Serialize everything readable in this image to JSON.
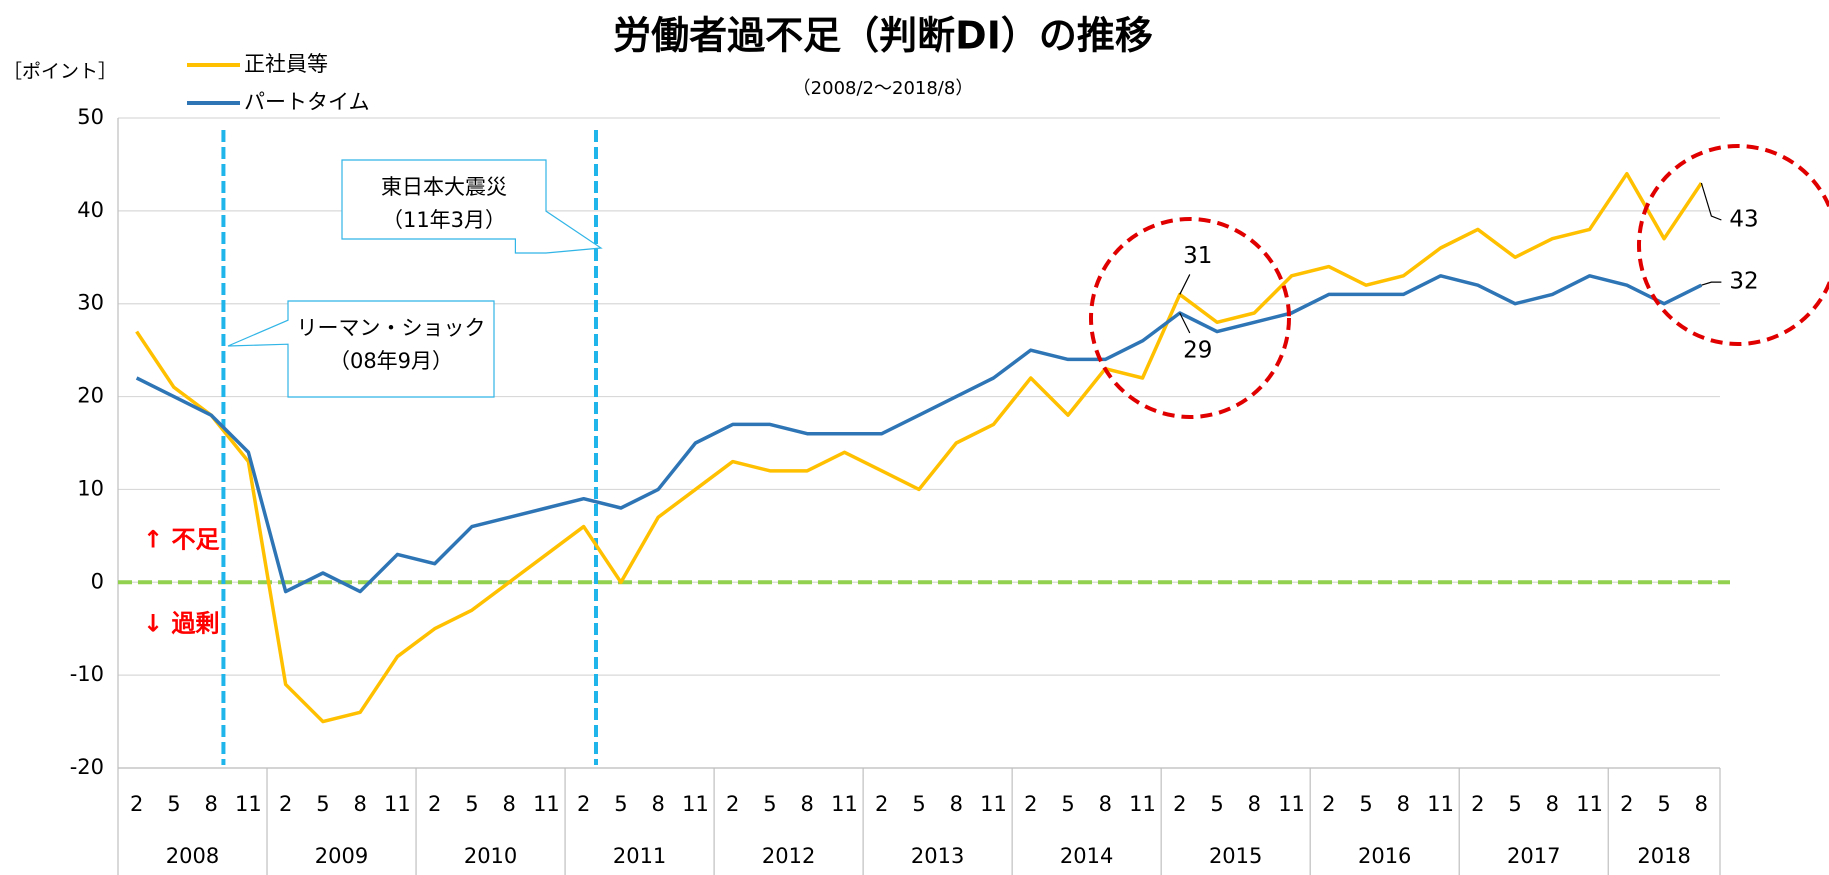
{
  "chart_data": {
    "type": "line",
    "title": "労働者過不足（判断DI）の推移",
    "subtitle": "（2008/2〜2018/8）",
    "y_label": "［ポイント］",
    "categories": [
      "2",
      "5",
      "8",
      "11",
      "2",
      "5",
      "8",
      "11",
      "2",
      "5",
      "8",
      "11",
      "2",
      "5",
      "8",
      "11",
      "2",
      "5",
      "8",
      "11",
      "2",
      "5",
      "8",
      "11",
      "2",
      "5",
      "8",
      "11",
      "2",
      "5",
      "8",
      "11",
      "2",
      "5",
      "8",
      "11",
      "2",
      "5",
      "8",
      "11",
      "2",
      "5",
      "8"
    ],
    "years": [
      "2008",
      "2009",
      "2010",
      "2011",
      "2012",
      "2013",
      "2014",
      "2015",
      "2016",
      "2017",
      "2018"
    ],
    "series": [
      {
        "name": "正社員等",
        "color": "#ffc000",
        "values": [
          27,
          21,
          18,
          13,
          -11,
          -15,
          -14,
          -8,
          -5,
          -3,
          0,
          3,
          6,
          0,
          7,
          10,
          13,
          12,
          12,
          14,
          12,
          10,
          15,
          17,
          22,
          18,
          23,
          22,
          31,
          28,
          29,
          33,
          34,
          32,
          33,
          36,
          38,
          35,
          37,
          38,
          44,
          37,
          43
        ],
        "value_labels": [
          null,
          null,
          null,
          null,
          null,
          null,
          null,
          null,
          null,
          null,
          null,
          null,
          null,
          null,
          null,
          null,
          null,
          null,
          null,
          null,
          null,
          null,
          null,
          null,
          null,
          null,
          null,
          null,
          "31",
          null,
          null,
          null,
          null,
          null,
          null,
          null,
          null,
          null,
          null,
          null,
          null,
          null,
          "43"
        ]
      },
      {
        "name": "パートタイム",
        "color": "#2e75b6",
        "values": [
          22,
          20,
          18,
          14,
          -1,
          1,
          -1,
          3,
          2,
          6,
          7,
          8,
          9,
          8,
          10,
          15,
          17,
          17,
          16,
          16,
          16,
          18,
          20,
          22,
          25,
          24,
          24,
          26,
          29,
          27,
          28,
          29,
          31,
          31,
          31,
          33,
          32,
          30,
          31,
          33,
          32,
          30,
          32
        ],
        "value_labels": [
          null,
          null,
          null,
          null,
          null,
          null,
          null,
          null,
          null,
          null,
          null,
          null,
          null,
          null,
          null,
          null,
          null,
          null,
          null,
          null,
          null,
          null,
          null,
          null,
          null,
          null,
          null,
          null,
          "29",
          null,
          null,
          null,
          null,
          null,
          null,
          null,
          null,
          null,
          null,
          null,
          null,
          null,
          "32"
        ]
      }
    ],
    "ylim": [
      -20,
      50
    ],
    "yticks": [
      -20,
      -10,
      0,
      10,
      20,
      30,
      40,
      50
    ],
    "grid": true,
    "legend": "top-left",
    "events": [
      {
        "lines": [
          "リーマン・ショック",
          "（08年9月）"
        ]
      },
      {
        "lines": [
          "東日本大震災",
          "（11年3月）"
        ]
      }
    ],
    "zones": [
      "↑ 不足",
      "↓ 過剰"
    ]
  }
}
